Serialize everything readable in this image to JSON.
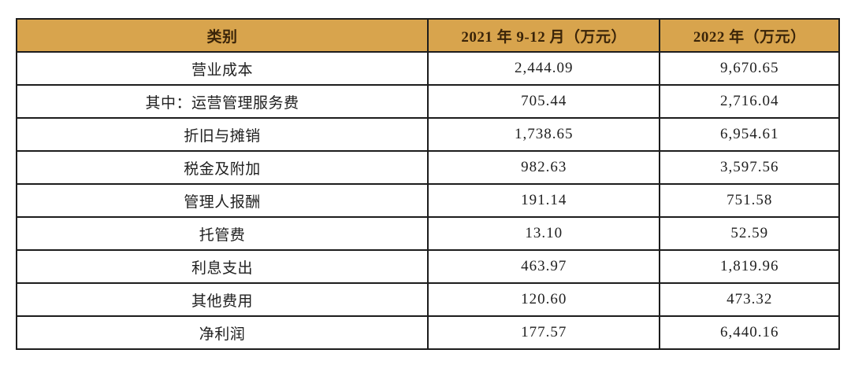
{
  "table": {
    "unit_note": "万元",
    "columns": [
      {
        "label": "类别"
      },
      {
        "label": "2021 年 9-12 月（万元）"
      },
      {
        "label": "2022 年（万元）"
      }
    ],
    "rows": [
      {
        "category": "营业成本",
        "v2021": "2,444.09",
        "v2022": "9,670.65"
      },
      {
        "category": "其中：运营管理服务费",
        "v2021": "705.44",
        "v2022": "2,716.04"
      },
      {
        "category": "折旧与摊销",
        "v2021": "1,738.65",
        "v2022": "6,954.61"
      },
      {
        "category": "税金及附加",
        "v2021": "982.63",
        "v2022": "3,597.56"
      },
      {
        "category": "管理人报酬",
        "v2021": "191.14",
        "v2022": "751.58"
      },
      {
        "category": "托管费",
        "v2021": "13.10",
        "v2022": "52.59"
      },
      {
        "category": "利息支出",
        "v2021": "463.97",
        "v2022": "1,819.96"
      },
      {
        "category": "其他费用",
        "v2021": "120.60",
        "v2022": "473.32"
      },
      {
        "category": "净利润",
        "v2021": "177.57",
        "v2022": "6,440.16"
      }
    ]
  },
  "colors": {
    "header_bg": "#d8a44d",
    "header_text": "#3a2409",
    "border": "#1c1c1c",
    "body_text": "#1f1f1f"
  }
}
